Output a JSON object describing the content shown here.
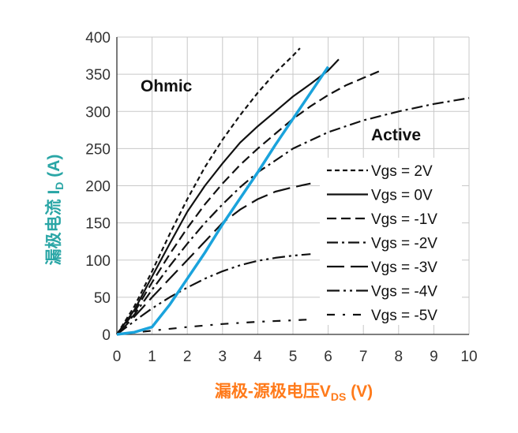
{
  "chart_data": {
    "type": "line",
    "title": "",
    "xlabel": {
      "main": "漏极-源极电压V",
      "sub": "DS",
      "unit": " (V)"
    },
    "ylabel": {
      "main": "漏极电流 I",
      "sub": "D",
      "unit": " (A)"
    },
    "xlim": [
      0,
      10
    ],
    "ylim": [
      0,
      400
    ],
    "x_ticks": [
      "0",
      "1",
      "2",
      "3",
      "4",
      "5",
      "6",
      "7",
      "8",
      "9",
      "10"
    ],
    "y_ticks": [
      "0",
      "50",
      "100",
      "150",
      "200",
      "250",
      "300",
      "350",
      "400"
    ],
    "grid": true,
    "legend_position": "right",
    "annotations": [
      "Ohmic",
      "Active"
    ],
    "colors": {
      "curves": "#111111",
      "load_line": "#1aa3dc",
      "xlabel": "#ff7a1a",
      "ylabel": "#2aa6a6",
      "grid": "#c8c8c8"
    },
    "series": [
      {
        "name": "Vgs = 2V",
        "dash": "short-dash",
        "x": [
          0,
          0.5,
          1,
          1.5,
          2,
          2.5,
          3,
          3.5,
          4,
          4.5,
          5,
          5.2
        ],
        "y": [
          0,
          38,
          85,
          135,
          182,
          225,
          262,
          295,
          325,
          352,
          375,
          385
        ]
      },
      {
        "name": "Vgs = 0V",
        "dash": "solid",
        "x": [
          0,
          0.5,
          1,
          1.5,
          2,
          2.5,
          3,
          3.5,
          4,
          4.5,
          5,
          5.5,
          6,
          6.3
        ],
        "y": [
          0,
          33,
          78,
          122,
          165,
          200,
          230,
          258,
          280,
          300,
          320,
          337,
          355,
          370
        ]
      },
      {
        "name": "Vgs = -1V",
        "dash": "dash",
        "x": [
          0,
          0.5,
          1,
          1.5,
          2,
          2.5,
          3,
          3.5,
          4,
          4.5,
          5,
          5.5,
          6,
          6.5,
          7,
          7.5
        ],
        "y": [
          0,
          30,
          70,
          108,
          143,
          175,
          203,
          228,
          250,
          270,
          290,
          307,
          322,
          335,
          345,
          355
        ]
      },
      {
        "name": "Vgs = -2V",
        "dash": "dash-dot",
        "x": [
          0,
          0.5,
          1,
          1.5,
          2,
          2.5,
          3,
          3.5,
          4,
          4.5,
          5,
          6,
          7,
          8,
          9,
          10
        ],
        "y": [
          0,
          27,
          60,
          92,
          122,
          150,
          175,
          198,
          218,
          234,
          250,
          272,
          288,
          300,
          310,
          318
        ]
      },
      {
        "name": "Vgs = -3V",
        "dash": "long-dash",
        "x": [
          0,
          0.5,
          1,
          1.5,
          2,
          2.5,
          3,
          3.5,
          4,
          4.5,
          5,
          5.5
        ],
        "y": [
          0,
          24,
          50,
          75,
          100,
          125,
          150,
          168,
          182,
          192,
          198,
          203
        ]
      },
      {
        "name": "Vgs = -4V",
        "dash": "dash-dot-dot",
        "x": [
          0,
          0.5,
          1,
          1.5,
          2,
          2.5,
          3,
          3.5,
          4,
          4.5,
          5,
          5.5
        ],
        "y": [
          0,
          18,
          35,
          50,
          63,
          75,
          85,
          93,
          99,
          103,
          106,
          108
        ]
      },
      {
        "name": "Vgs = -5V",
        "dash": "sparse-dash-dot",
        "x": [
          0,
          1,
          2,
          3,
          4,
          5,
          5.5
        ],
        "y": [
          0,
          5,
          10,
          14,
          17,
          19,
          20
        ]
      },
      {
        "name": "",
        "role": "load-line",
        "dash": "solid",
        "x": [
          0,
          0.5,
          1,
          1.5,
          2,
          2.5,
          3,
          3.5,
          4,
          4.5,
          5,
          5.5,
          6
        ],
        "y": [
          0,
          3,
          10,
          40,
          75,
          110,
          148,
          183,
          218,
          255,
          290,
          325,
          360
        ]
      }
    ]
  }
}
